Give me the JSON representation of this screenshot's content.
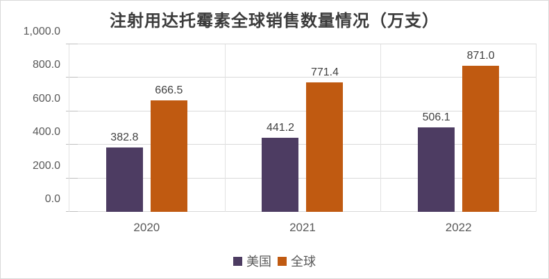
{
  "chart_data": {
    "type": "bar",
    "title": "注射用达托霉素全球销售数量情况（万支）",
    "categories": [
      "2020",
      "2021",
      "2022"
    ],
    "series": [
      {
        "name": "美国",
        "color": "#4d3c62",
        "values": [
          382.8,
          441.2,
          506.1
        ],
        "value_labels": [
          "382.8",
          "441.2",
          "506.1"
        ]
      },
      {
        "name": "全球",
        "color": "#c05a11",
        "values": [
          666.5,
          771.4,
          871.0
        ],
        "value_labels": [
          "666.5",
          "771.4",
          "871.0"
        ]
      }
    ],
    "ylim": [
      0,
      1000
    ],
    "ytick_values": [
      0,
      200,
      400,
      600,
      800,
      1000
    ],
    "ytick_labels": [
      "0.0",
      "200.0",
      "400.0",
      "600.0",
      "800.0",
      "1,000.0"
    ],
    "grid": true,
    "gridline_color": "#d9d9d9",
    "axis_text_color": "#595959",
    "label_text_color": "#404040",
    "legend_position": "bottom"
  }
}
